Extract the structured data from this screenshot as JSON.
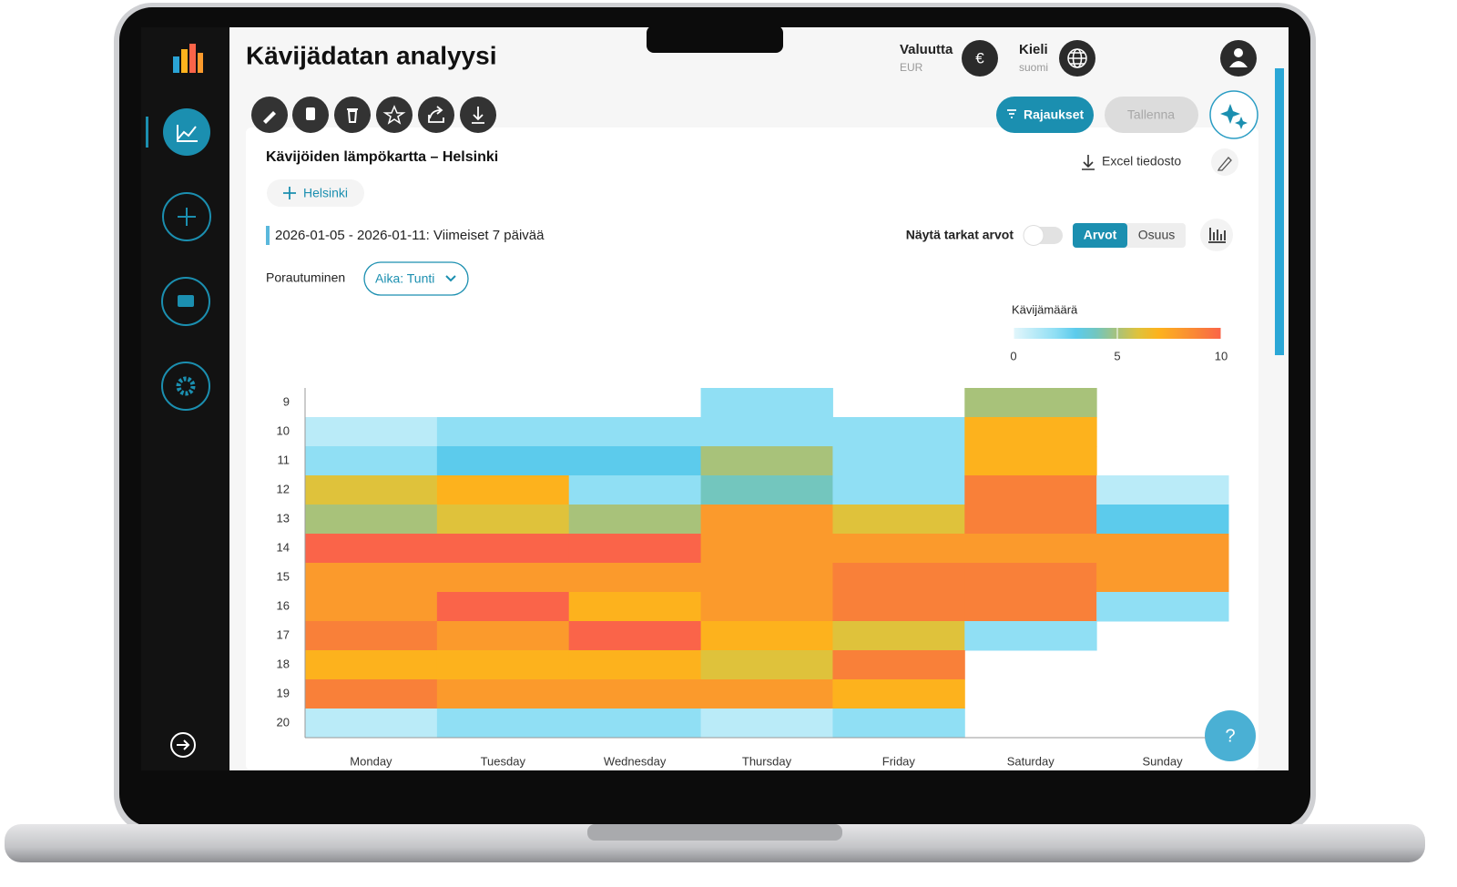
{
  "header": {
    "title": "Kävijädatan analyysi",
    "currency_label": "Valuutta",
    "currency_value": "EUR",
    "currency_symbol": "€",
    "language_label": "Kieli",
    "language_value": "suomi"
  },
  "toolbar": {
    "filters": "Rajaukset",
    "save": "Tallenna"
  },
  "card": {
    "title": "Kävijöiden lämpökartta – Helsinki",
    "excel": "Excel tiedosto",
    "location_chip": "Helsinki",
    "date_range": "2026-01-05 - 2026-01-11: Viimeiset 7 päivää",
    "exact_values": "Näytä tarkat arvot",
    "mode_values": "Arvot",
    "mode_share": "Osuus",
    "drilldown_label": "Porautuminen",
    "drilldown_value": "Aika: Tunti"
  },
  "help": "?",
  "chart_data": {
    "type": "heatmap",
    "x": [
      "Monday",
      "Tuesday",
      "Wednesday",
      "Thursday",
      "Friday",
      "Saturday",
      "Sunday"
    ],
    "y": [
      9,
      10,
      11,
      12,
      13,
      14,
      15,
      16,
      17,
      18,
      19,
      20
    ],
    "values": [
      [
        null,
        null,
        null,
        2,
        null,
        5,
        null
      ],
      [
        1,
        2,
        2,
        2,
        2,
        7,
        null
      ],
      [
        2,
        3,
        3,
        5,
        2,
        7,
        null
      ],
      [
        6,
        7,
        2,
        4,
        2,
        9,
        1
      ],
      [
        5,
        6,
        5,
        8,
        6,
        9,
        3
      ],
      [
        10,
        10,
        10,
        8,
        8,
        8,
        8
      ],
      [
        8,
        8,
        8,
        8,
        9,
        9,
        8
      ],
      [
        8,
        10,
        7,
        8,
        9,
        9,
        2
      ],
      [
        9,
        8,
        10,
        7,
        6,
        2,
        null
      ],
      [
        7,
        7,
        7,
        6,
        9,
        null,
        null
      ],
      [
        9,
        8,
        8,
        8,
        7,
        null,
        null
      ],
      [
        1,
        2,
        2,
        1,
        2,
        null,
        null
      ]
    ],
    "colorbar": {
      "title": "Kävijämäärä",
      "lim": [
        0,
        10
      ],
      "ticks": [
        0,
        5,
        10
      ]
    },
    "colorscale": [
      {
        "value": 0,
        "color": "#e3f6fb"
      },
      {
        "value": 2,
        "color": "#90dff4"
      },
      {
        "value": 3,
        "color": "#5ccbec"
      },
      {
        "value": 4,
        "color": "#73c6be"
      },
      {
        "value": 5,
        "color": "#a8c27a"
      },
      {
        "value": 6,
        "color": "#dfc23b"
      },
      {
        "value": 7,
        "color": "#fdb21d"
      },
      {
        "value": 8,
        "color": "#fb9a2c"
      },
      {
        "value": 9,
        "color": "#f98039"
      },
      {
        "value": 10,
        "color": "#fa6449"
      }
    ]
  }
}
